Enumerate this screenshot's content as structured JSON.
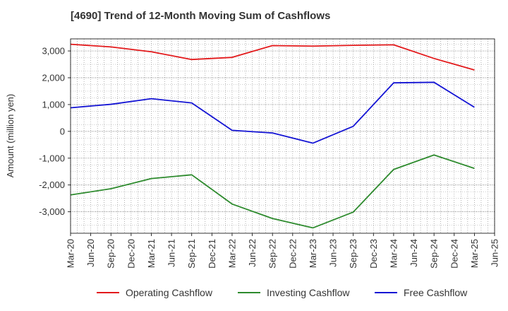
{
  "chart_data": {
    "type": "line",
    "title": "[4690]  Trend of 12-Month Moving Sum of Cashflows",
    "xlabel": "",
    "ylabel": "Amount (million yen)",
    "x_ticks": [
      "Mar-20",
      "Jun-20",
      "Sep-20",
      "Dec-20",
      "Mar-21",
      "Jun-21",
      "Sep-21",
      "Dec-21",
      "Mar-22",
      "Jun-22",
      "Sep-22",
      "Dec-22",
      "Mar-23",
      "Jun-23",
      "Sep-23",
      "Dec-23",
      "Mar-24",
      "Jun-24",
      "Sep-24",
      "Dec-24",
      "Mar-25",
      "Jun-25"
    ],
    "x": [
      "Mar-20",
      "Sep-20",
      "Mar-21",
      "Sep-21",
      "Mar-22",
      "Sep-22",
      "Mar-23",
      "Sep-23",
      "Mar-24",
      "Sep-24",
      "Mar-25"
    ],
    "y_ticks": [
      3000,
      2000,
      1000,
      0,
      -1000,
      -2000,
      -3000
    ],
    "y_tick_labels": [
      "3,000",
      "2,000",
      "1,000",
      "0",
      "-1,000",
      "-2,000",
      "-3,000"
    ],
    "ylim": [
      -3800,
      3450
    ],
    "grid": true,
    "legend_position": "bottom",
    "series": [
      {
        "name": "Operating Cashflow",
        "color": "#e31a1c",
        "values": [
          3250,
          3150,
          2970,
          2680,
          2760,
          3200,
          3180,
          3210,
          3230,
          2720,
          2290
        ]
      },
      {
        "name": "Investing Cashflow",
        "color": "#2e8b2e",
        "values": [
          -2370,
          -2140,
          -1760,
          -1620,
          -2710,
          -3250,
          -3600,
          -3010,
          -1420,
          -880,
          -1380
        ]
      },
      {
        "name": "Free Cashflow",
        "color": "#1414d4",
        "values": [
          880,
          1010,
          1220,
          1060,
          40,
          -60,
          -440,
          190,
          1810,
          1830,
          900
        ]
      }
    ]
  }
}
